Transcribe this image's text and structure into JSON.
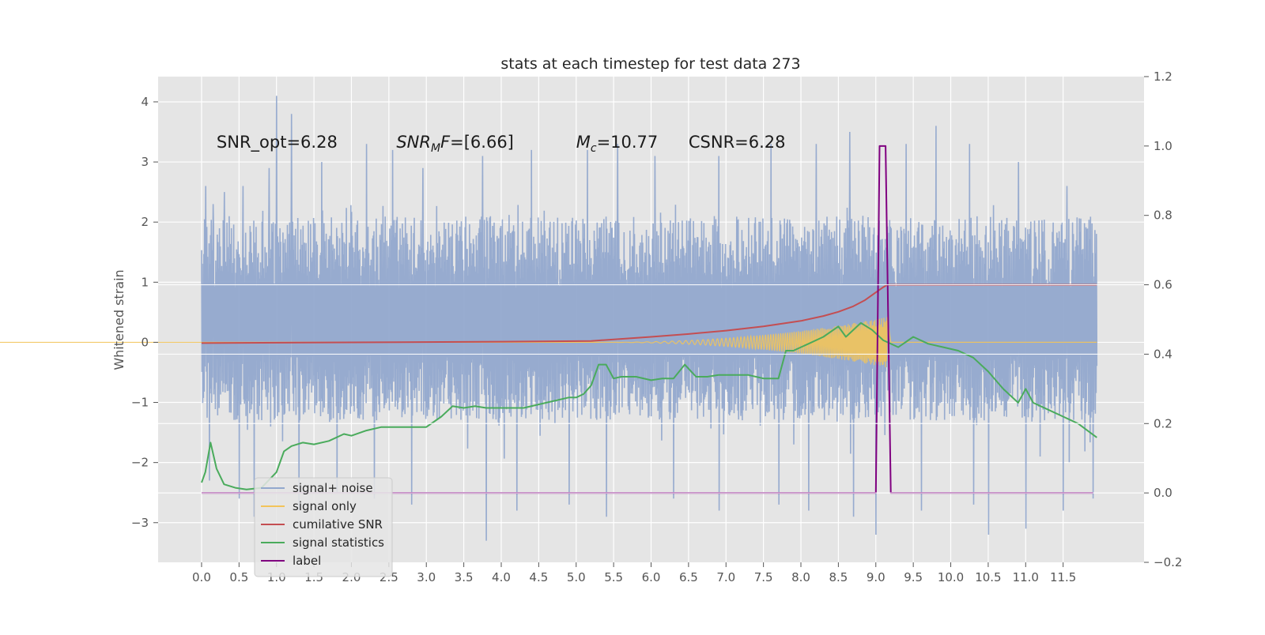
{
  "chart_data": {
    "type": "line",
    "title": "stats at each timestep for test data 273",
    "ylabel": "Whitened strain",
    "xlabel": "",
    "xlim": [
      -0.58,
      12.58
    ],
    "ylim": [
      -3.66,
      4.42
    ],
    "ylim_right": [
      -0.2,
      1.2
    ],
    "x_ticks": [
      0.0,
      0.5,
      1.0,
      1.5,
      2.0,
      2.5,
      3.0,
      3.5,
      4.0,
      4.5,
      5.0,
      5.5,
      6.0,
      6.5,
      7.0,
      7.5,
      8.0,
      8.5,
      9.0,
      9.5,
      10.0,
      10.5,
      11.0,
      11.5
    ],
    "x_tick_labels": [
      "0.0",
      "0.5",
      "1.0",
      "1.5",
      "2.0",
      "2.5",
      "3.0",
      "3.5",
      "4.0",
      "4.5",
      "5.0",
      "5.5",
      "6.0",
      "6.5",
      "7.0",
      "7.5",
      "8.0",
      "8.5",
      "9.0",
      "9.5",
      "10.0",
      "10.5",
      "11.0",
      "11.5"
    ],
    "y_ticks": [
      -3,
      -2,
      -1,
      0,
      1,
      2,
      3,
      4
    ],
    "y_tick_labels": [
      "−3",
      "−2",
      "−1",
      "0",
      "1",
      "2",
      "3",
      "4"
    ],
    "y_ticks_right": [
      -0.2,
      0.0,
      0.2,
      0.4,
      0.6,
      0.8,
      1.0,
      1.2
    ],
    "y_tick_labels_right": [
      "−0.2",
      "0.0",
      "0.2",
      "0.4",
      "0.6",
      "0.8",
      "1.0",
      "1.2"
    ],
    "grid": true,
    "legend_position": "lower-left",
    "annotations": [
      {
        "parts": [
          {
            "t": "SNR_opt=6.28",
            "i": false
          }
        ],
        "x": 0.2,
        "y": 3.3
      },
      {
        "parts": [
          {
            "t": "SNR",
            "i": true
          },
          {
            "t": "M",
            "i": true,
            "sub": true
          },
          {
            "t": "F",
            "i": true
          },
          {
            "t": "=[6.66]",
            "i": false
          }
        ],
        "x": 2.6,
        "y": 3.3
      },
      {
        "parts": [
          {
            "t": "M",
            "i": true
          },
          {
            "t": "c",
            "i": true,
            "sub": true
          },
          {
            "t": "=10.77",
            "i": false
          }
        ],
        "x": 5.0,
        "y": 3.3
      },
      {
        "parts": [
          {
            "t": "CSNR=6.28",
            "i": false
          }
        ],
        "x": 6.5,
        "y": 3.3
      }
    ],
    "legend": [
      {
        "label": "signal+ noise",
        "color": "#92a8cd"
      },
      {
        "label": "signal only",
        "color": "#f2c45a"
      },
      {
        "label": "cumilative SNR",
        "color": "#c44e52"
      },
      {
        "label": "signal statistics",
        "color": "#4aab5c"
      },
      {
        "label": "label",
        "color": "#800080"
      }
    ],
    "series": [
      {
        "name": "signal+ noise",
        "axis": "left",
        "kind": "noise",
        "color": "#92a8cd",
        "x_range": [
          0.0,
          11.95
        ],
        "typical_envelope": [
          -1.3,
          2.1
        ],
        "peaks_x": [
          0.05,
          0.15,
          0.3,
          0.55,
          0.9,
          1.0,
          1.2,
          1.6,
          2.2,
          2.55,
          2.95,
          3.75,
          4.4,
          5.15,
          5.55,
          6.05,
          6.9,
          7.6,
          8.2,
          8.65,
          9.0,
          9.4,
          9.8,
          10.25,
          10.9,
          11.55,
          11.9
        ],
        "peaks_y": [
          2.6,
          2.3,
          2.5,
          2.6,
          2.9,
          4.1,
          3.8,
          3.0,
          3.3,
          3.2,
          2.9,
          3.1,
          3.2,
          3.2,
          3.3,
          3.1,
          3.1,
          3.3,
          3.3,
          3.5,
          3.1,
          3.3,
          3.6,
          3.3,
          3.0,
          2.6,
          2.5
        ],
        "troughs_x": [
          0.1,
          0.5,
          0.7,
          1.3,
          1.8,
          2.3,
          2.8,
          3.8,
          4.2,
          4.9,
          5.4,
          6.3,
          6.9,
          7.7,
          8.1,
          8.7,
          9.0,
          9.6,
          10.3,
          10.5,
          11.0,
          11.5,
          11.9
        ],
        "troughs_y": [
          -2.3,
          -2.6,
          -2.9,
          -2.8,
          -2.5,
          -2.6,
          -2.7,
          -3.3,
          -2.8,
          -2.7,
          -2.9,
          -2.6,
          -2.8,
          -2.7,
          -2.8,
          -2.9,
          -3.2,
          -2.8,
          -2.7,
          -3.2,
          -3.1,
          -2.8,
          -2.6
        ]
      },
      {
        "name": "signal only",
        "axis": "left",
        "kind": "chirp",
        "color": "#f2c45a",
        "start_x": 5.3,
        "end_x": 9.15,
        "peak_amplitude": 0.42,
        "tail_end_x": 11.95
      },
      {
        "name": "cumilative SNR",
        "axis": "right",
        "color": "#c44e52",
        "x": [
          0.0,
          2.0,
          4.0,
          5.2,
          5.6,
          6.0,
          6.5,
          7.0,
          7.5,
          8.0,
          8.3,
          8.5,
          8.7,
          8.85,
          9.0,
          9.1,
          9.15,
          11.95
        ],
        "values": [
          0.432,
          0.434,
          0.436,
          0.438,
          0.444,
          0.45,
          0.458,
          0.468,
          0.48,
          0.496,
          0.51,
          0.522,
          0.538,
          0.555,
          0.578,
          0.593,
          0.6,
          0.6
        ]
      },
      {
        "name": "signal statistics",
        "axis": "right",
        "color": "#4aab5c",
        "x": [
          0.0,
          0.05,
          0.12,
          0.2,
          0.3,
          0.45,
          0.6,
          0.8,
          1.0,
          1.1,
          1.2,
          1.35,
          1.5,
          1.7,
          1.9,
          2.0,
          2.2,
          2.4,
          2.6,
          2.8,
          3.0,
          3.2,
          3.35,
          3.5,
          3.65,
          3.8,
          4.0,
          4.3,
          4.6,
          4.9,
          5.0,
          5.1,
          5.2,
          5.3,
          5.4,
          5.5,
          5.6,
          5.8,
          6.0,
          6.15,
          6.3,
          6.45,
          6.6,
          6.75,
          6.9,
          7.1,
          7.3,
          7.5,
          7.7,
          7.8,
          7.9,
          8.0,
          8.1,
          8.3,
          8.5,
          8.6,
          8.8,
          8.95,
          9.1,
          9.3,
          9.5,
          9.7,
          9.9,
          10.1,
          10.3,
          10.5,
          10.7,
          10.9,
          11.0,
          11.1,
          11.3,
          11.5,
          11.7,
          11.95
        ],
        "values": [
          0.03,
          0.06,
          0.145,
          0.07,
          0.025,
          0.015,
          0.01,
          0.015,
          0.06,
          0.12,
          0.135,
          0.145,
          0.14,
          0.15,
          0.17,
          0.165,
          0.18,
          0.19,
          0.19,
          0.19,
          0.19,
          0.22,
          0.25,
          0.245,
          0.25,
          0.245,
          0.245,
          0.245,
          0.26,
          0.275,
          0.275,
          0.285,
          0.31,
          0.37,
          0.37,
          0.33,
          0.335,
          0.335,
          0.325,
          0.33,
          0.33,
          0.37,
          0.335,
          0.335,
          0.34,
          0.34,
          0.34,
          0.33,
          0.33,
          0.41,
          0.41,
          0.42,
          0.43,
          0.45,
          0.48,
          0.45,
          0.49,
          0.47,
          0.44,
          0.42,
          0.45,
          0.43,
          0.42,
          0.41,
          0.39,
          0.35,
          0.3,
          0.26,
          0.3,
          0.26,
          0.24,
          0.22,
          0.2,
          0.16
        ]
      },
      {
        "name": "label",
        "axis": "right",
        "color": "#800080",
        "x": [
          0.0,
          9.0,
          9.05,
          9.13,
          9.2,
          11.9
        ],
        "values": [
          0.0,
          0.0,
          1.0,
          1.0,
          0.0,
          0.0
        ]
      }
    ]
  }
}
